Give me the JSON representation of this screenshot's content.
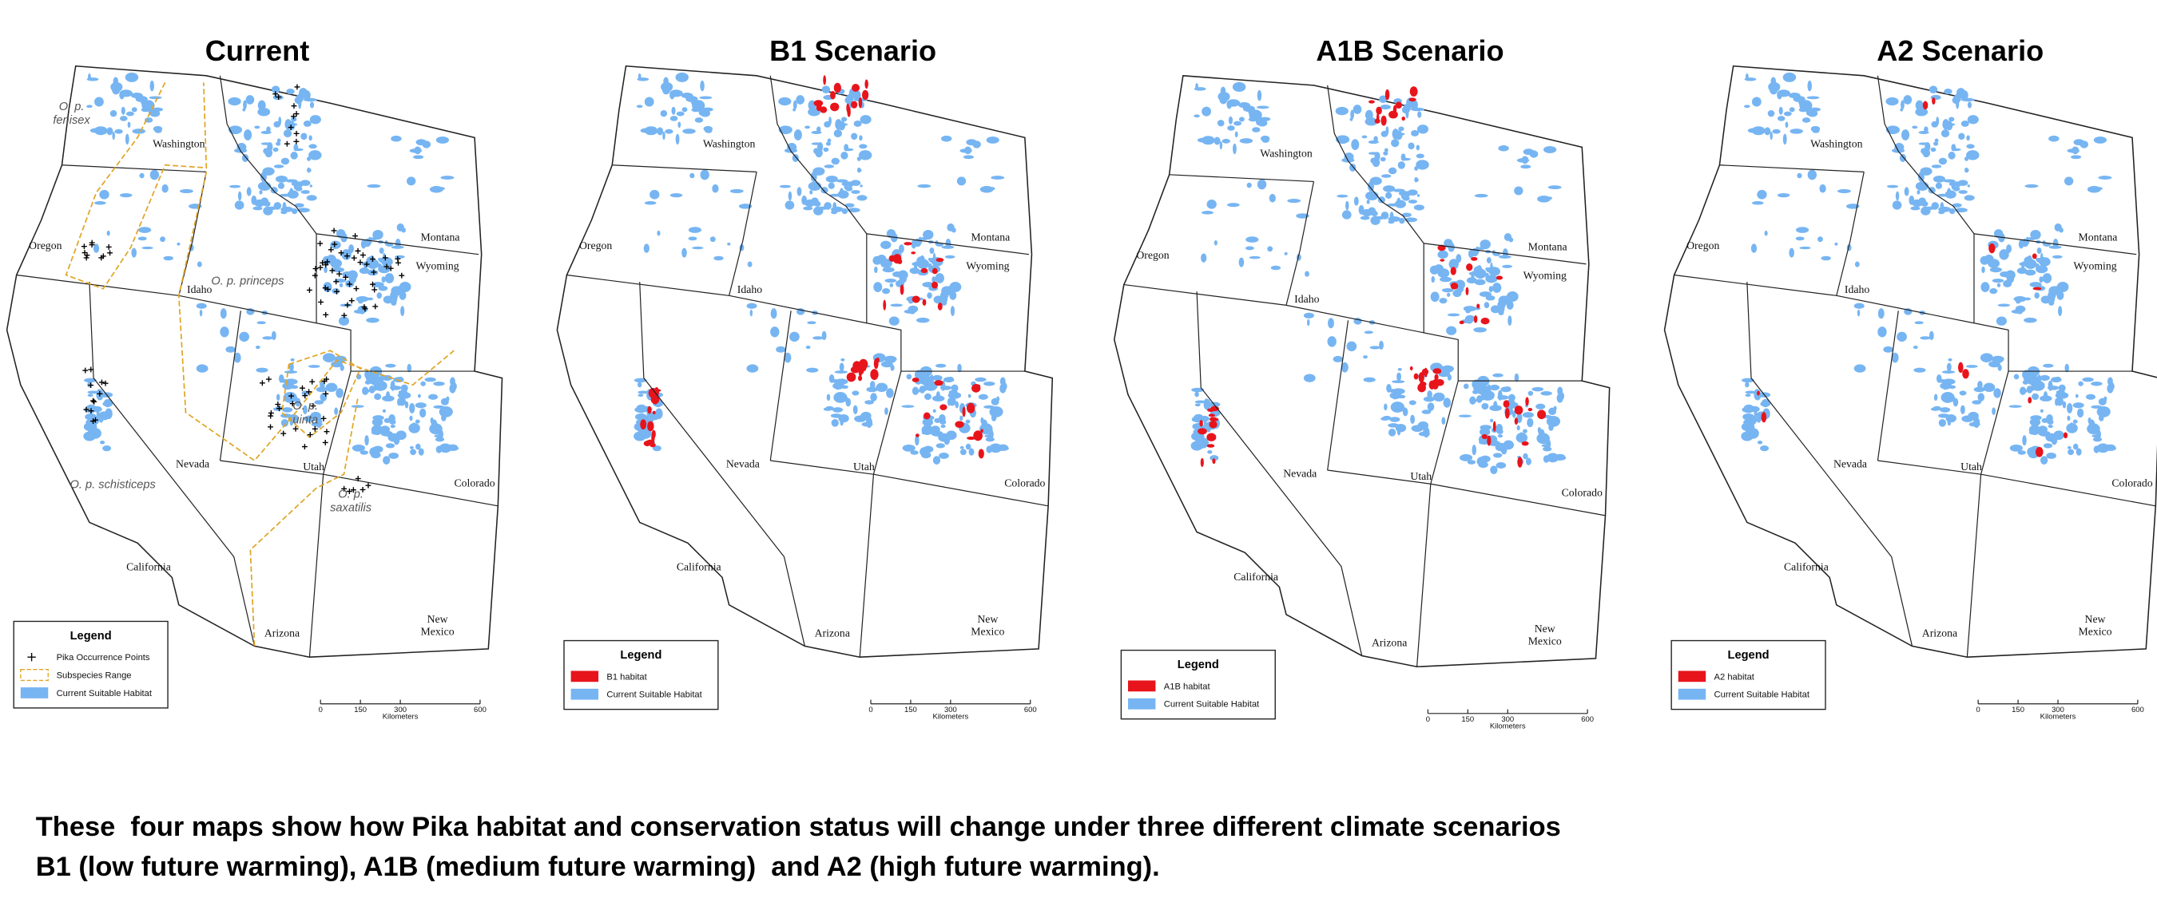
{
  "panels": [
    {
      "title": "Current",
      "states": [
        "Washington",
        "Oregon",
        "Idaho",
        "Montana",
        "Wyoming",
        "Nevada",
        "Utah",
        "Colorado",
        "California",
        "Arizona",
        "New Mexico"
      ],
      "subspecies": [
        "O. p. fenisex",
        "O. p. princeps",
        "O. p. uinta",
        "O. p. schisticeps",
        "O. p. saxatilis"
      ],
      "legend": {
        "title": "Legend",
        "items": [
          {
            "label": "Pika Occurrence Points",
            "symbol": "cross",
            "color": "#000000"
          },
          {
            "label": "Subspecies Range",
            "symbol": "dashed",
            "color": "#e0a526"
          },
          {
            "label": "Current Suitable Habitat",
            "symbol": "fill",
            "color": "#77b5f2"
          }
        ]
      },
      "scale": {
        "ticks": [
          0,
          150,
          300,
          600
        ],
        "unit": "Kilometers"
      }
    },
    {
      "title": "B1 Scenario",
      "states": [
        "Washington",
        "Oregon",
        "Idaho",
        "Montana",
        "Wyoming",
        "Nevada",
        "Utah",
        "Colorado",
        "California",
        "Arizona",
        "New Mexico"
      ],
      "legend": {
        "title": "Legend",
        "items": [
          {
            "label": "B1 habitat",
            "symbol": "fill",
            "color": "#e8141c"
          },
          {
            "label": "Current Suitable Habitat",
            "symbol": "fill",
            "color": "#77b5f2"
          }
        ]
      },
      "scale": {
        "ticks": [
          0,
          150,
          300,
          600
        ],
        "unit": "Kilometers"
      }
    },
    {
      "title": "A1B Scenario",
      "states": [
        "Washington",
        "Oregon",
        "Idaho",
        "Montana",
        "Wyoming",
        "Nevada",
        "Utah",
        "Colorado",
        "California",
        "Arizona",
        "New Mexico"
      ],
      "legend": {
        "title": "Legend",
        "items": [
          {
            "label": "A1B habitat",
            "symbol": "fill",
            "color": "#e8141c"
          },
          {
            "label": "Current Suitable Habitat",
            "symbol": "fill",
            "color": "#77b5f2"
          }
        ]
      },
      "scale": {
        "ticks": [
          0,
          150,
          300,
          600
        ],
        "unit": "Kilometers"
      }
    },
    {
      "title": "A2 Scenario",
      "states": [
        "Washington",
        "Oregon",
        "Idaho",
        "Montana",
        "Wyoming",
        "Nevada",
        "Utah",
        "Colorado",
        "California",
        "Arizona",
        "New Mexico"
      ],
      "legend": {
        "title": "Legend",
        "items": [
          {
            "label": "A2 habitat",
            "symbol": "fill",
            "color": "#e8141c"
          },
          {
            "label": "Current Suitable Habitat",
            "symbol": "fill",
            "color": "#77b5f2"
          }
        ]
      },
      "scale": {
        "ticks": [
          0,
          150,
          300,
          600
        ],
        "unit": "Kilometers"
      }
    }
  ],
  "caption": [
    "These  four maps show how Pika habitat and conservation status will change under three different climate scenarios",
    "B1 (low future warming), A1B (medium future warming)  and A2 (high future warming)."
  ]
}
